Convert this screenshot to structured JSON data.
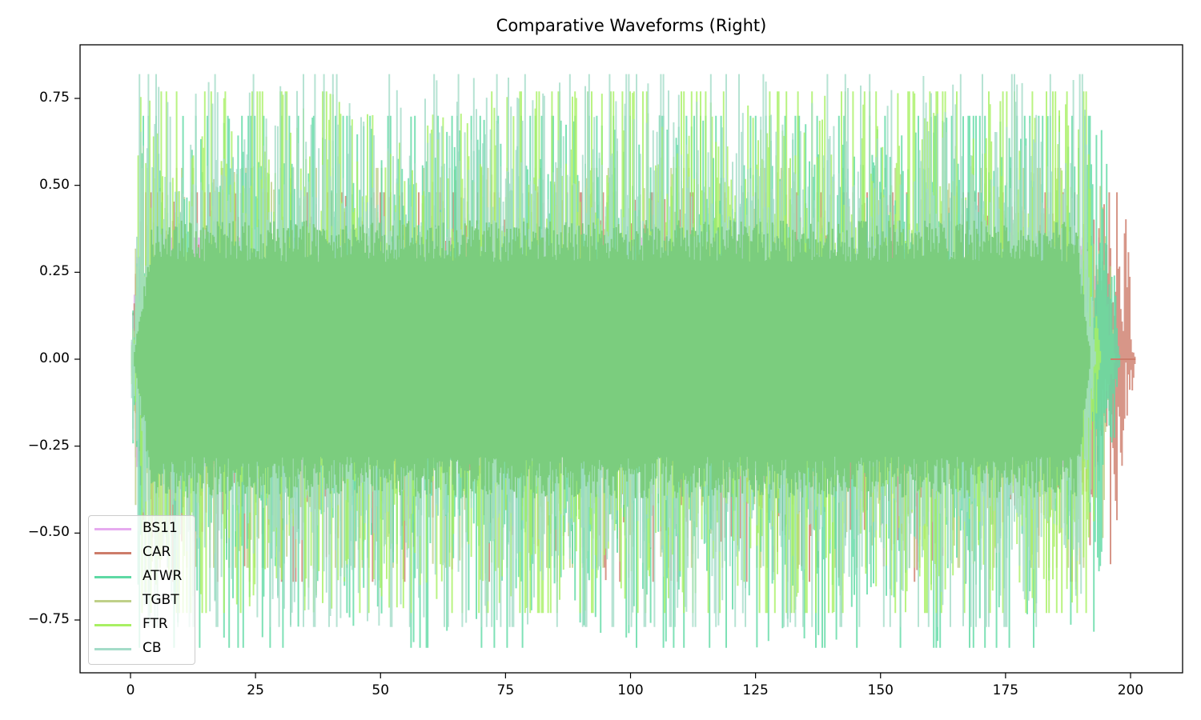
{
  "chart_data": {
    "type": "line",
    "title": "Comparative Waveforms (Right)",
    "xlabel": "",
    "ylabel": "",
    "xlim": [
      -10,
      210
    ],
    "ylim": [
      -0.9,
      0.9
    ],
    "grid": false,
    "legend_position": "lower left",
    "x_ticks": [
      0,
      25,
      50,
      75,
      100,
      125,
      150,
      175,
      200
    ],
    "x_tick_labels": [
      "0",
      "25",
      "50",
      "75",
      "100",
      "125",
      "150",
      "175",
      "200"
    ],
    "y_ticks": [
      0.75,
      0.5,
      0.25,
      0.0,
      -0.25,
      -0.5,
      -0.75
    ],
    "y_tick_labels": [
      "0.75",
      "0.50",
      "0.25",
      "0.00",
      "−0.25",
      "−0.50",
      "−0.75"
    ],
    "series": [
      {
        "name": "BS11",
        "color": "#e6aaef",
        "x_range": [
          0,
          196
        ],
        "approx_amplitude": 0.45,
        "approx_peak_max": 0.35,
        "approx_peak_min": -0.31
      },
      {
        "name": "CAR",
        "color": "#cd7c6a",
        "x_range": [
          0,
          201
        ],
        "approx_amplitude": 0.45,
        "approx_peak_max": 0.48,
        "approx_peak_min": -0.64
      },
      {
        "name": "ATWR",
        "color": "#5ed9a4",
        "x_range": [
          0,
          198
        ],
        "approx_amplitude": 0.65,
        "approx_peak_max": 0.7,
        "approx_peak_min": -0.83
      },
      {
        "name": "TGBT",
        "color": "#bfd088",
        "x_range": [
          0,
          197
        ],
        "approx_amplitude": 0.5,
        "approx_peak_max": 0.55,
        "approx_peak_min": -0.6
      },
      {
        "name": "FTR",
        "color": "#a8f063",
        "x_range": [
          0,
          194
        ],
        "approx_amplitude": 0.7,
        "approx_peak_max": 0.77,
        "approx_peak_min": -0.73
      },
      {
        "name": "CB",
        "color": "#a4dcc8",
        "x_range": [
          0,
          193
        ],
        "approx_amplitude": 0.7,
        "approx_peak_max": 0.82,
        "approx_peak_min": -0.77
      }
    ],
    "notes": "Dense overlapping audio waveforms; centered at 0 with bulk energy roughly within ±0.5; individual samples not recoverable from pixels."
  },
  "legend": {
    "items": [
      {
        "label": "BS11",
        "color": "#e6aaef"
      },
      {
        "label": "CAR",
        "color": "#cd7c6a"
      },
      {
        "label": "ATWR",
        "color": "#5ed9a4"
      },
      {
        "label": "TGBT",
        "color": "#bfd088"
      },
      {
        "label": "FTR",
        "color": "#a8f063"
      },
      {
        "label": "CB",
        "color": "#a4dcc8"
      }
    ]
  },
  "core_fill_color": "#7bcd7e"
}
